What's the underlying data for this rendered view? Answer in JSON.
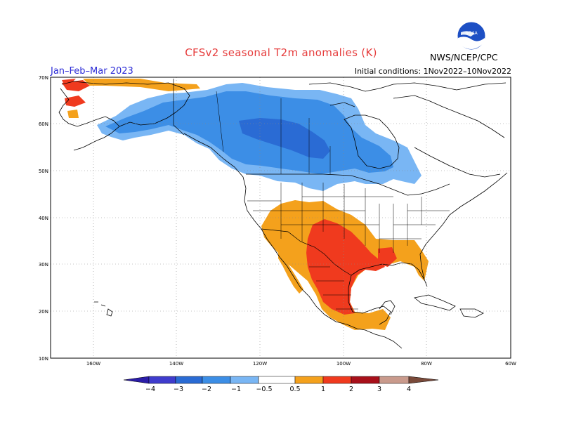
{
  "title": "CFSv2 seasonal T2m anomalies (K)",
  "season": "Jan–Feb–Mar 2023",
  "initial_conditions": "Initial conditions: 1Nov2022–10Nov2022",
  "agency": "NWS/NCEP/CPC",
  "logo": {
    "text": "NOAA",
    "icon": "noaa-logo-icon"
  },
  "lat_ticks": [
    "70N",
    "60N",
    "50N",
    "40N",
    "30N",
    "20N",
    "10N"
  ],
  "lon_ticks": [
    "160W",
    "140W",
    "120W",
    "100W",
    "80W",
    "60W"
  ],
  "colorbar": {
    "labels": [
      "−4",
      "−3",
      "−2",
      "−1",
      "−0.5",
      "0.5",
      "1",
      "2",
      "3",
      "4"
    ],
    "colors": {
      "below_-4": "#2b1da8",
      "-4_-3": "#3f3ccd",
      "-3_-2": "#2a6bd4",
      "-2_-1": "#3c8ee6",
      "-1_-0.5": "#79b6f4",
      "-0.5_0.5": "#ffffff",
      "0.5_1": "#f4a11c",
      "1_2": "#f03a1e",
      "2_3": "#a8101a",
      "3_4": "#c99a8c",
      "above_4": "#7a4a3a"
    }
  },
  "anomaly_regions": [
    {
      "region": "Canada / Alaska interior",
      "category": "-2_-1"
    },
    {
      "region": "Northwest Territories",
      "category": "-3_-2"
    },
    {
      "region": "Southern US / Mexico",
      "category": "1_2"
    },
    {
      "region": "Southwest US / Southeast US",
      "category": "0.5_1"
    },
    {
      "region": "Bering Sea / western Alaska coast",
      "category": "1_2"
    }
  ]
}
